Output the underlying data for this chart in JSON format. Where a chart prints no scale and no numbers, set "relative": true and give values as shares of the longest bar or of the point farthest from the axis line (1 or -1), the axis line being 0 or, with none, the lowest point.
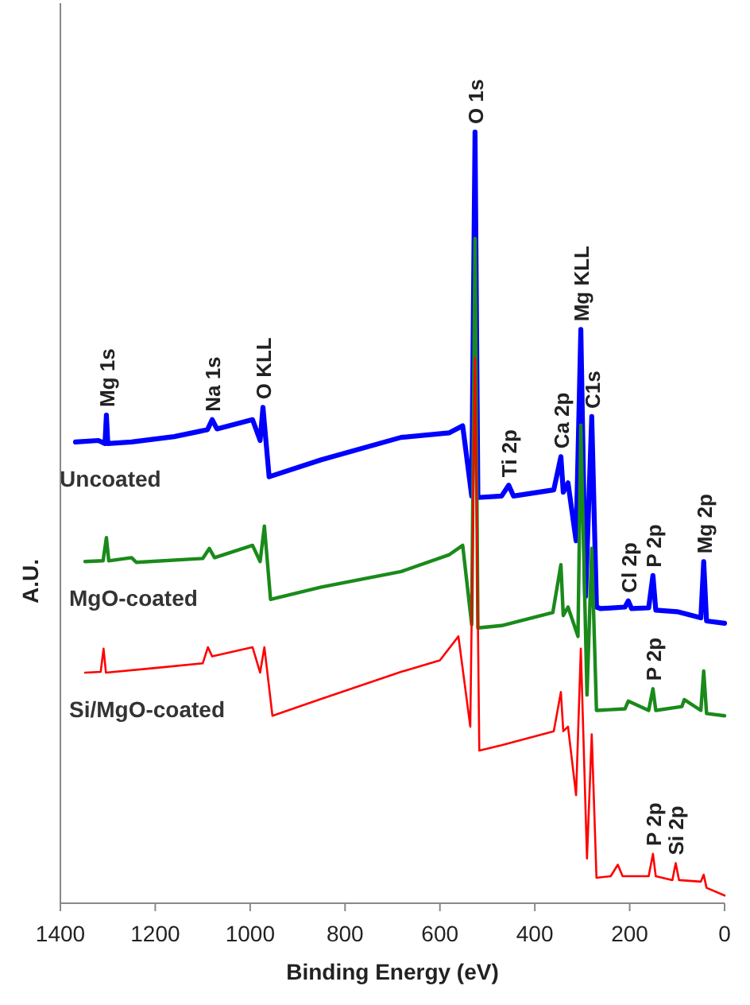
{
  "chart_data": {
    "type": "line",
    "xlabel": "Binding Energy (eV)",
    "ylabel": "A.U.",
    "relative": true,
    "xlim": [
      1400,
      0
    ],
    "xticks": [
      1400,
      1200,
      1000,
      800,
      600,
      400,
      200,
      0
    ],
    "series": [
      {
        "name": "Uncoated",
        "color": "#0000ff",
        "x": [
          1368,
          1320,
          1306,
          1303,
          1300,
          1250,
          1160,
          1090,
          1080,
          1070,
          995,
          979,
          973,
          960,
          850,
          682,
          580,
          552,
          533,
          526,
          520,
          470,
          455,
          445,
          360,
          345,
          340,
          330,
          313,
          303,
          293,
          280,
          270,
          261,
          210,
          203,
          196,
          160,
          151,
          145,
          100,
          50,
          44,
          38,
          0
        ],
        "values": [
          0.598,
          0.6,
          0.596,
          0.633,
          0.596,
          0.598,
          0.605,
          0.614,
          0.627,
          0.615,
          0.627,
          0.6,
          0.643,
          0.553,
          0.575,
          0.604,
          0.61,
          0.619,
          0.528,
          1.0,
          0.526,
          0.528,
          0.542,
          0.528,
          0.536,
          0.579,
          0.533,
          0.545,
          0.47,
          0.744,
          0.398,
          0.631,
          0.384,
          0.382,
          0.384,
          0.392,
          0.382,
          0.383,
          0.425,
          0.38,
          0.378,
          0.37,
          0.443,
          0.366,
          0.363
        ]
      },
      {
        "name": "MgO-coated",
        "color": "#1a8a1a",
        "x": [
          1348,
          1310,
          1303,
          1298,
          1250,
          1240,
          1100,
          1086,
          1075,
          995,
          979,
          970,
          957,
          850,
          682,
          580,
          552,
          533,
          526,
          520,
          470,
          362,
          345,
          340,
          330,
          309,
          303,
          290,
          280,
          270,
          210,
          203,
          160,
          151,
          145,
          90,
          85,
          50,
          44,
          38,
          0
        ],
        "values": [
          0.443,
          0.444,
          0.474,
          0.444,
          0.448,
          0.442,
          0.447,
          0.46,
          0.448,
          0.464,
          0.443,
          0.489,
          0.394,
          0.41,
          0.43,
          0.452,
          0.464,
          0.361,
          0.862,
          0.357,
          0.36,
          0.377,
          0.439,
          0.373,
          0.384,
          0.346,
          0.62,
          0.27,
          0.46,
          0.25,
          0.252,
          0.262,
          0.25,
          0.278,
          0.25,
          0.255,
          0.264,
          0.25,
          0.301,
          0.246,
          0.243
        ]
      },
      {
        "name": "Si/MgO-coated",
        "color": "#ff0000",
        "x": [
          1348,
          1315,
          1309,
          1304,
          1200,
          1100,
          1089,
          1080,
          995,
          979,
          970,
          953,
          850,
          682,
          600,
          561,
          536,
          526,
          517,
          470,
          360,
          345,
          340,
          330,
          313,
          303,
          290,
          280,
          270,
          240,
          225,
          215,
          160,
          151,
          145,
          110,
          103,
          96,
          50,
          44,
          38,
          0
        ],
        "values": [
          0.299,
          0.3,
          0.33,
          0.299,
          0.305,
          0.311,
          0.332,
          0.32,
          0.332,
          0.299,
          0.332,
          0.243,
          0.265,
          0.3,
          0.315,
          0.346,
          0.229,
          0.707,
          0.198,
          0.205,
          0.223,
          0.274,
          0.223,
          0.229,
          0.14,
          0.33,
          0.058,
          0.219,
          0.033,
          0.035,
          0.05,
          0.035,
          0.035,
          0.064,
          0.035,
          0.03,
          0.052,
          0.03,
          0.028,
          0.037,
          0.02,
          0.01
        ]
      }
    ],
    "annotations": [
      {
        "text": "Mg 1s",
        "x": 1303,
        "y": 0.633
      },
      {
        "text": "Na 1s",
        "x": 1080,
        "y": 0.627
      },
      {
        "text": "O KLL",
        "x": 973,
        "y": 0.643
      },
      {
        "text": "O 1s",
        "x": 526,
        "y": 1.0
      },
      {
        "text": "Ti 2p",
        "x": 455,
        "y": 0.542
      },
      {
        "text": "Ca 2p",
        "x": 345,
        "y": 0.579
      },
      {
        "text": "Mg KLL",
        "x": 303,
        "y": 0.744
      },
      {
        "text": "C1s",
        "x": 280,
        "y": 0.631
      },
      {
        "text": "Cl 2p",
        "x": 203,
        "y": 0.392
      },
      {
        "text": "P 2p",
        "x": 151,
        "y": 0.425
      },
      {
        "text": "Mg 2p",
        "x": 44,
        "y": 0.443
      },
      {
        "text": "P 2p",
        "x": 151,
        "y": 0.278
      },
      {
        "text": "P 2p",
        "x": 151,
        "y": 0.064
      },
      {
        "text": "Si 2p",
        "x": 103,
        "y": 0.052
      }
    ]
  }
}
